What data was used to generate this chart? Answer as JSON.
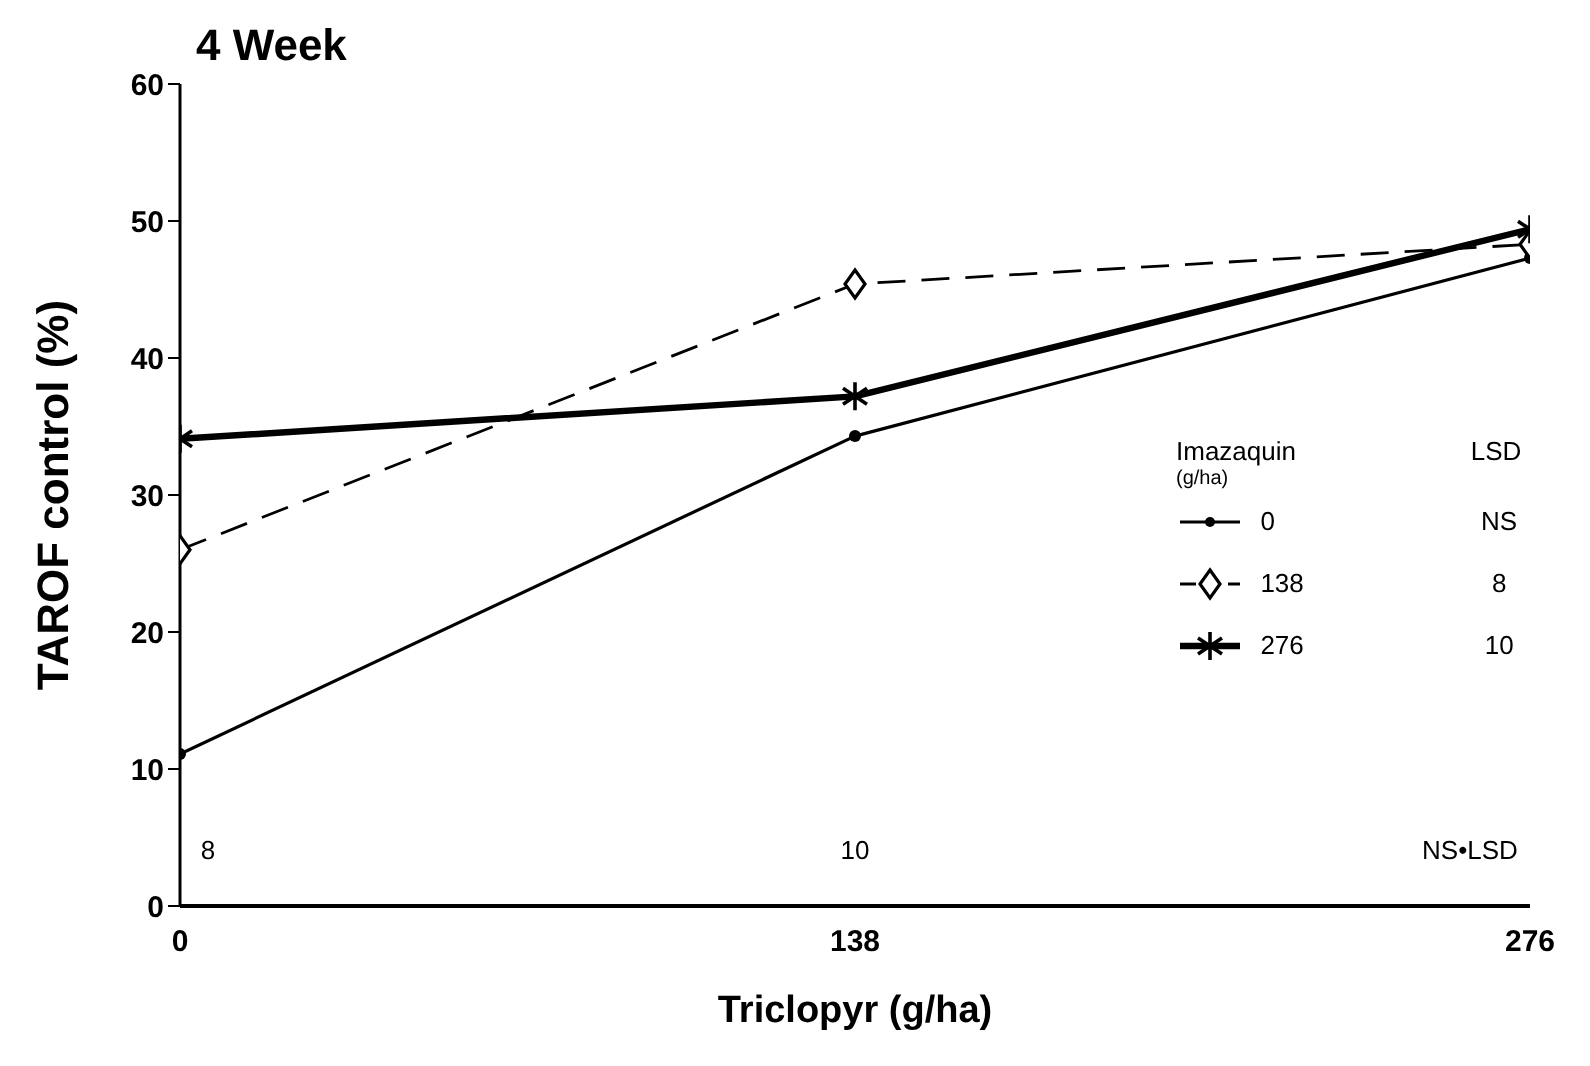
{
  "chart_data": {
    "type": "line",
    "title": "4 Week",
    "xlabel": "Triclopyr (g/ha)",
    "ylabel": "TAROF control (%)",
    "legend_title": "Imazaquin\n(g/ha)",
    "x": [
      0,
      138,
      276
    ],
    "xlim": [
      0,
      276
    ],
    "xticks": [
      0,
      138,
      276
    ],
    "ylim": [
      0,
      60
    ],
    "yticks": [
      0,
      10,
      20,
      30,
      40,
      50,
      60
    ],
    "series": [
      {
        "name": "0",
        "color": "#000000",
        "values": [
          11.1,
          34.3,
          47.3
        ],
        "marker": "circle",
        "line_style": "solid"
      },
      {
        "name": "138",
        "color": "#000000",
        "values": [
          26.0,
          45.4,
          48.3
        ],
        "marker": "diamond",
        "line_style": "dashed"
      },
      {
        "name": "276",
        "color": "#000000",
        "values": [
          34.1,
          37.2,
          49.4
        ],
        "marker": "cross",
        "line_style": "solid"
      }
    ],
    "annotations": [
      "LSD",
      "NS",
      "8",
      "10",
      "8",
      "10",
      "NS•LSD"
    ],
    "legend": "right",
    "grid": false
  }
}
